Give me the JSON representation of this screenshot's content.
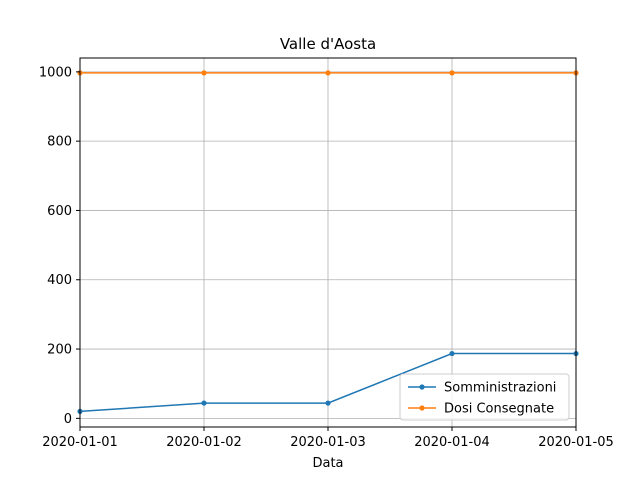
{
  "chart_data": {
    "type": "line",
    "title": "Valle d'Aosta",
    "xlabel": "Data",
    "ylabel": "",
    "categories": [
      "2020-01-01",
      "2020-01-02",
      "2020-01-03",
      "2020-01-04",
      "2020-01-05"
    ],
    "ylim": [
      -25,
      1040
    ],
    "yticks": [
      0,
      200,
      400,
      600,
      800,
      1000
    ],
    "grid": true,
    "legend_position": "lower-right",
    "series": [
      {
        "name": "Somministrazioni",
        "color": "#1f77b4",
        "values": [
          20,
          44,
          44,
          187,
          187
        ]
      },
      {
        "name": "Dosi Consegnate",
        "color": "#ff7f0e",
        "values": [
          997,
          997,
          997,
          997,
          997
        ]
      }
    ]
  }
}
